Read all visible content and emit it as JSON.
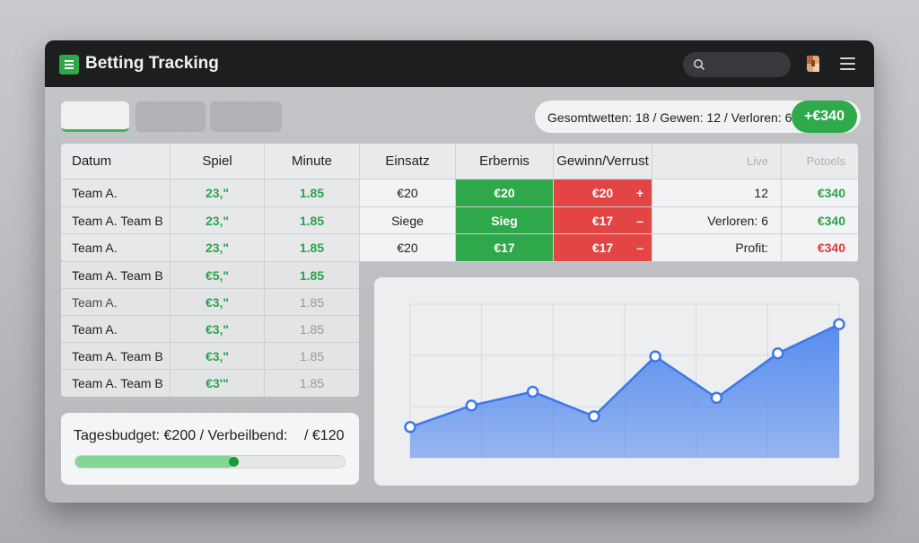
{
  "app": {
    "title": "Betting Tracking"
  },
  "summary": {
    "text": "Gesomtwetten: 18 / Gewen: 12 / Verloren: 6 /",
    "profit": "+€340"
  },
  "table": {
    "headers": [
      "Datum",
      "Spiel",
      "Minute",
      "Einsatz",
      "Erbernis",
      "Gewinn/Verrust",
      "Live",
      "Potoels"
    ],
    "rows": [
      [
        "Team A.",
        "23‚\"",
        "1.85",
        "€20",
        "€20",
        "€20",
        "12",
        "€340"
      ],
      [
        "Team A. Team B",
        "23‚\"",
        "1.85",
        "Siege",
        "Sieg",
        "€17",
        "Verloren: 6",
        "€340"
      ],
      [
        "Team A.",
        "23‚\"",
        "1.85",
        "€20",
        "€17",
        "€17",
        "Profit:",
        "€340"
      ]
    ],
    "signs": [
      "+",
      "–",
      "–"
    ],
    "lower_rows": [
      [
        "Team A. Team B",
        "€5‚\"",
        "1.85"
      ],
      [
        "Team A.",
        "€3‚\"",
        "1.85"
      ],
      [
        "Team A.",
        "€3‚\"",
        "1.85"
      ],
      [
        "Team A. Team B",
        "€3‚\"",
        "1.85"
      ],
      [
        "Team A. Team B",
        "€3'\"",
        "1.85"
      ]
    ]
  },
  "budget": {
    "label": "Tagesbudget: €200 / Verbeilbend:",
    "remaining": "/ €120",
    "progress": 0.59
  },
  "chart_data": {
    "type": "area",
    "x": [
      1,
      2,
      3,
      4,
      5,
      6,
      7,
      8
    ],
    "values": [
      0,
      28,
      46,
      14,
      92,
      38,
      96,
      134
    ],
    "ylim": [
      -40,
      160
    ],
    "grid": true,
    "color": "#4f87ef"
  },
  "colors": {
    "accent_green": "#2fa84b",
    "loss_red": "#e34444",
    "chart_blue": "#4f87ef"
  }
}
